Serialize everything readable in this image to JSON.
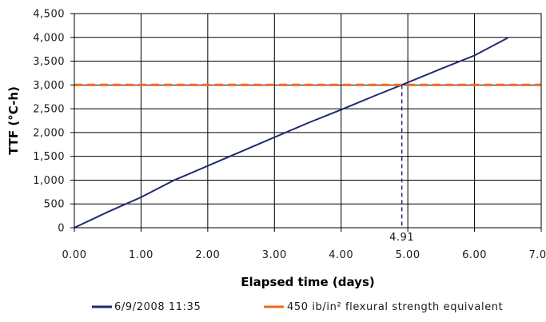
{
  "chart_data": {
    "type": "line",
    "xlabel": "Elapsed time (days)",
    "ylabel": "TTF (°C-h)",
    "xlim": [
      0,
      7
    ],
    "ylim": [
      0,
      4500
    ],
    "x_ticks": [
      0,
      1,
      2,
      3,
      4,
      5,
      6,
      7
    ],
    "x_tick_labels": [
      "0.00",
      "1.00",
      "2.00",
      "3.00",
      "4.00",
      "5.00",
      "6.00",
      "7.00"
    ],
    "y_ticks": [
      0,
      500,
      1000,
      1500,
      2000,
      2500,
      3000,
      3500,
      4000,
      4500
    ],
    "y_tick_labels": [
      "0",
      "500",
      "1,000",
      "1,500",
      "2,000",
      "2,500",
      "3,000",
      "3,500",
      "4,000",
      "4,500"
    ],
    "grid": true,
    "legend_position": "bottom",
    "series": [
      {
        "name": "6/9/2008 11:35",
        "color": "#1f2a6e",
        "style": "solid",
        "x": [
          0,
          0.5,
          1.0,
          1.5,
          2.0,
          2.5,
          3.0,
          3.5,
          4.0,
          4.5,
          4.91,
          5.5,
          6.0,
          6.5
        ],
        "y": [
          0,
          330,
          640,
          1000,
          1300,
          1600,
          1900,
          2200,
          2480,
          2770,
          3000,
          3340,
          3620,
          3990
        ]
      },
      {
        "name": "450 ib/in² flexural strength equivalent",
        "color": "#f26a1b",
        "style": "dashed",
        "x": [
          0,
          7
        ],
        "y": [
          3000,
          3000
        ]
      }
    ],
    "annotations": [
      {
        "text": "4.91",
        "x": 4.91,
        "y": 3000,
        "color": "#1f2a6e",
        "style": "dashed-drop-line"
      }
    ]
  }
}
